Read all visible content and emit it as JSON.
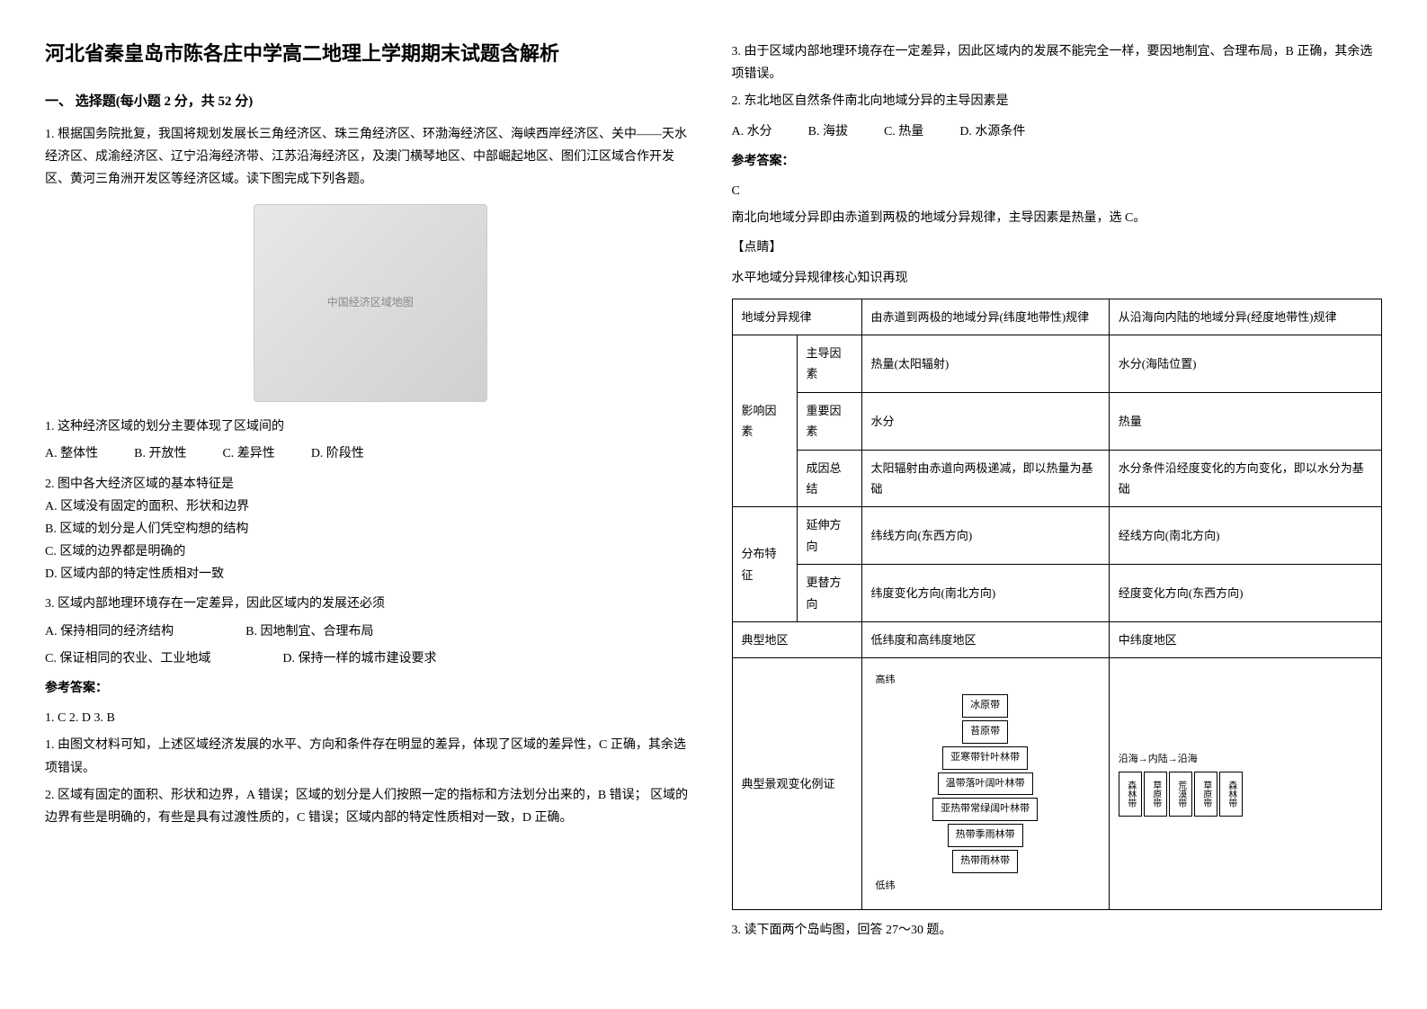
{
  "title": "河北省秦皇岛市陈各庄中学高二地理上学期期末试题含解析",
  "section1": {
    "header": "一、 选择题(每小题 2 分，共 52 分)",
    "q1": {
      "intro": "1. 根据国务院批复，我国将规划发展长三角经济区、珠三角经济区、环渤海经济区、海峡西岸经济区、关中——天水经济区、成渝经济区、辽宁沿海经济带、江苏沿海经济区，及澳门横琴地区、中部崛起地区、图们江区域合作开发区、黄河三角洲开发区等经济区域。读下图完成下列各题。",
      "map_label": "中国经济区域地图",
      "sub1": {
        "text": "1. 这种经济区域的划分主要体现了区域间的",
        "optA": "A. 整体性",
        "optB": "B. 开放性",
        "optC": "C. 差异性",
        "optD": "D. 阶段性"
      },
      "sub2": {
        "text": "2. 图中各大经济区域的基本特征是",
        "optA": "A. 区域没有固定的面积、形状和边界",
        "optB": "B. 区域的划分是人们凭空构想的结构",
        "optC": "C. 区域的边界都是明确的",
        "optD": "D. 区域内部的特定性质相对一致"
      },
      "sub3": {
        "text": "3. 区域内部地理环境存在一定差异，因此区域内的发展还必须",
        "optA": "A. 保持相同的经济结构",
        "optB": "B. 因地制宜、合理布局",
        "optC": "C. 保证相同的农业、工业地域",
        "optD": "D. 保持一样的城市建设要求"
      },
      "answer_label": "参考答案：",
      "answers": "1. C    2. D    3. B",
      "explain1": "1. 由图文材料可知，上述区域经济发展的水平、方向和条件存在明显的差异，体现了区域的差异性，C 正确，其余选项错误。",
      "explain2": "2. 区域有固定的面积、形状和边界，A 错误；区域的划分是人们按照一定的指标和方法划分出来的，B 错误； 区域的边界有些是明确的，有些是具有过渡性质的，C 错误；区域内部的特定性质相对一致，D 正确。",
      "explain3": "3. 由于区域内部地理环境存在一定差异，因此区域内的发展不能完全一样，要因地制宜、合理布局，B 正确，其余选项错误。"
    },
    "q2": {
      "text": "2. 东北地区自然条件南北向地域分异的主导因素是",
      "optA": "A. 水分",
      "optB": "B. 海拔",
      "optC": "C. 热量",
      "optD": "D. 水源条件",
      "answer_label": "参考答案：",
      "answer": "C",
      "explain": "南北向地域分异即由赤道到两极的地域分异规律，主导因素是热量，选 C。",
      "hint_label": "【点睛】",
      "hint_text": "水平地域分异规律核心知识再现"
    },
    "table": {
      "header1": "地域分异规律",
      "header2": "由赤道到两极的地域分异(纬度地带性)规律",
      "header3": "从沿海向内陆的地域分异(经度地带性)规律",
      "row_group1": "影响因素",
      "r1_label": "主导因素",
      "r1_c1": "热量(太阳辐射)",
      "r1_c2": "水分(海陆位置)",
      "r2_label": "重要因素",
      "r2_c1": "水分",
      "r2_c2": "热量",
      "r3_label": "成因总结",
      "r3_c1": "太阳辐射由赤道向两极递减，即以热量为基础",
      "r3_c2": "水分条件沿经度变化的方向变化，即以水分为基础",
      "row_group2": "分布特征",
      "r4_label": "延伸方向",
      "r4_c1": "纬线方向(东西方向)",
      "r4_c2": "经线方向(南北方向)",
      "r5_label": "更替方向",
      "r5_c1": "纬度变化方向(南北方向)",
      "r5_c2": "经度变化方向(东西方向)",
      "r6_label": "典型地区",
      "r6_c1": "低纬度和高纬度地区",
      "r6_c2": "中纬度地区",
      "r7_label": "典型景观变化例证",
      "veg_high": "高纬",
      "veg_low": "低纬",
      "veg1": "冰原带",
      "veg2": "苔原带",
      "veg3": "亚寒带针叶林带",
      "veg4": "温带落叶阔叶林带",
      "veg5": "亚热带常绿阔叶林带",
      "veg6": "热带季雨林带",
      "veg7": "热带雨林带",
      "hveg_label": "沿海→内陆→沿海",
      "hv1": "森林带",
      "hv2": "草原带",
      "hv3": "荒漠带",
      "hv4": "草原带",
      "hv5": "森林带"
    },
    "q3": {
      "text": "3. 读下面两个岛屿图，回答 27～30 题。"
    }
  }
}
